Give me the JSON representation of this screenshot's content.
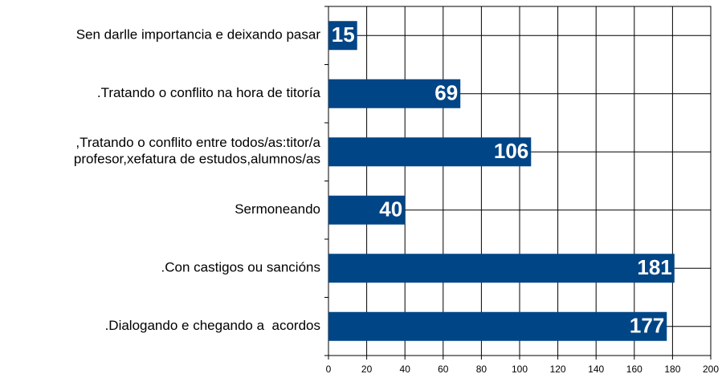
{
  "chart_data": {
    "type": "hbar",
    "categories": [
      "Sen darlle importancia e deixando pasar",
      ".Tratando o conflito na hora de titoría",
      ",Tratando o conflito entre todos/as:titor/a\nprofesor,xefatura de estudos,alumnos/as",
      "Sermoneando",
      ".Con castigos ou sancións",
      ".Dialogando e chegando a  acordos"
    ],
    "values": [
      15,
      69,
      106,
      40,
      181,
      177
    ],
    "color": "#004586",
    "xlim": [
      0,
      200
    ],
    "xticks": [
      0,
      20,
      40,
      60,
      80,
      100,
      120,
      140,
      160,
      180,
      200
    ],
    "grid": true
  }
}
